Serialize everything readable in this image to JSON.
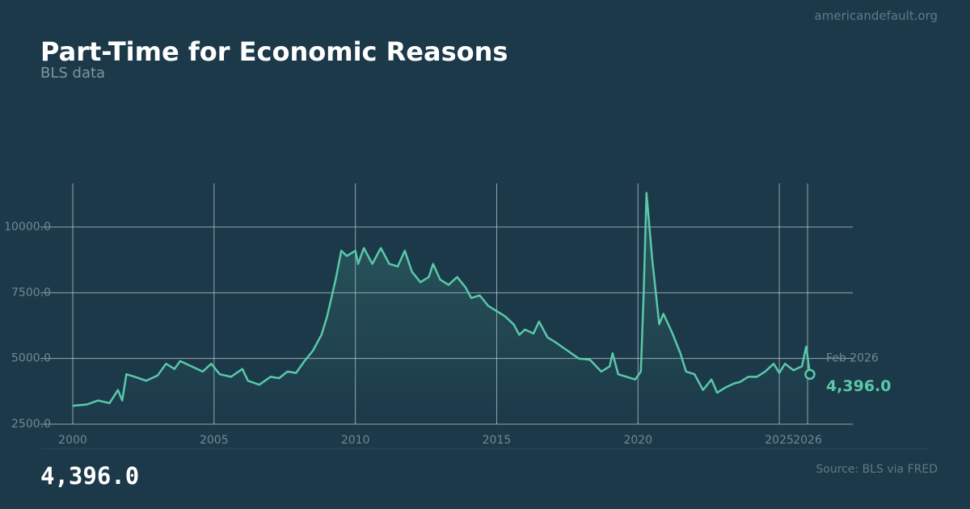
{
  "site": "americandefault.org",
  "source": "Source: BLS via FRED",
  "headline": "4,396.0",
  "chart_data": {
    "type": "line",
    "title": "Part-Time for Economic Reasons",
    "subtitle": "BLS data",
    "color": "#5ac8a8",
    "grid": true,
    "xlim": [
      2000,
      2027.6
    ],
    "ylim": [
      2500,
      11660
    ],
    "xticks": [
      2000,
      2005,
      2010,
      2015,
      2020,
      2025,
      2026
    ],
    "yticks": [
      {
        "value": 2500,
        "label": "2500.0"
      },
      {
        "value": 5000,
        "label": "5000.0"
      },
      {
        "value": 7500,
        "label": "7500.0"
      },
      {
        "value": 10000,
        "label": "10000.0"
      }
    ],
    "x": [
      2000.0,
      2000.5,
      2000.9,
      2001.3,
      2001.6,
      2001.75,
      2001.9,
      2002.2,
      2002.6,
      2003.0,
      2003.3,
      2003.6,
      2003.8,
      2004.2,
      2004.6,
      2004.9,
      2005.2,
      2005.6,
      2006.0,
      2006.2,
      2006.6,
      2007.0,
      2007.3,
      2007.6,
      2007.9,
      2008.2,
      2008.5,
      2008.8,
      2009.0,
      2009.3,
      2009.5,
      2009.7,
      2010.0,
      2010.1,
      2010.3,
      2010.6,
      2010.9,
      2011.2,
      2011.5,
      2011.75,
      2012.0,
      2012.3,
      2012.6,
      2012.75,
      2013.0,
      2013.3,
      2013.6,
      2013.9,
      2014.1,
      2014.4,
      2014.7,
      2015.0,
      2015.3,
      2015.6,
      2015.8,
      2016.0,
      2016.3,
      2016.5,
      2016.8,
      2017.1,
      2017.5,
      2017.9,
      2018.3,
      2018.7,
      2019.0,
      2019.1,
      2019.3,
      2019.6,
      2019.9,
      2020.1,
      2020.2,
      2020.3,
      2020.5,
      2020.6,
      2020.75,
      2020.9,
      2021.2,
      2021.5,
      2021.7,
      2022.0,
      2022.3,
      2022.6,
      2022.8,
      2023.1,
      2023.4,
      2023.6,
      2023.9,
      2024.2,
      2024.5,
      2024.8,
      2025.0,
      2025.2,
      2025.5,
      2025.8,
      2025.95,
      2026.083
    ],
    "values": [
      3200,
      3250,
      3400,
      3300,
      3800,
      3400,
      4400,
      4300,
      4150,
      4350,
      4800,
      4600,
      4900,
      4700,
      4500,
      4800,
      4400,
      4300,
      4600,
      4150,
      4000,
      4300,
      4250,
      4500,
      4450,
      4900,
      5300,
      5900,
      6600,
      8000,
      9100,
      8900,
      9100,
      8600,
      9200,
      8600,
      9200,
      8600,
      8500,
      9100,
      8300,
      7900,
      8100,
      8600,
      8000,
      7800,
      8100,
      7700,
      7300,
      7400,
      7000,
      6800,
      6600,
      6300,
      5900,
      6100,
      5950,
      6400,
      5800,
      5600,
      5300,
      5000,
      4950,
      4500,
      4700,
      5200,
      4400,
      4300,
      4200,
      4500,
      7500,
      11300,
      8800,
      7800,
      6300,
      6700,
      6000,
      5200,
      4500,
      4400,
      3800,
      4200,
      3700,
      3900,
      4050,
      4100,
      4300,
      4300,
      4500,
      4800,
      4450,
      4800,
      4550,
      4700,
      5450,
      4396
    ],
    "last_point": {
      "date": "Feb 2026",
      "value_label": "4,396.0"
    }
  }
}
